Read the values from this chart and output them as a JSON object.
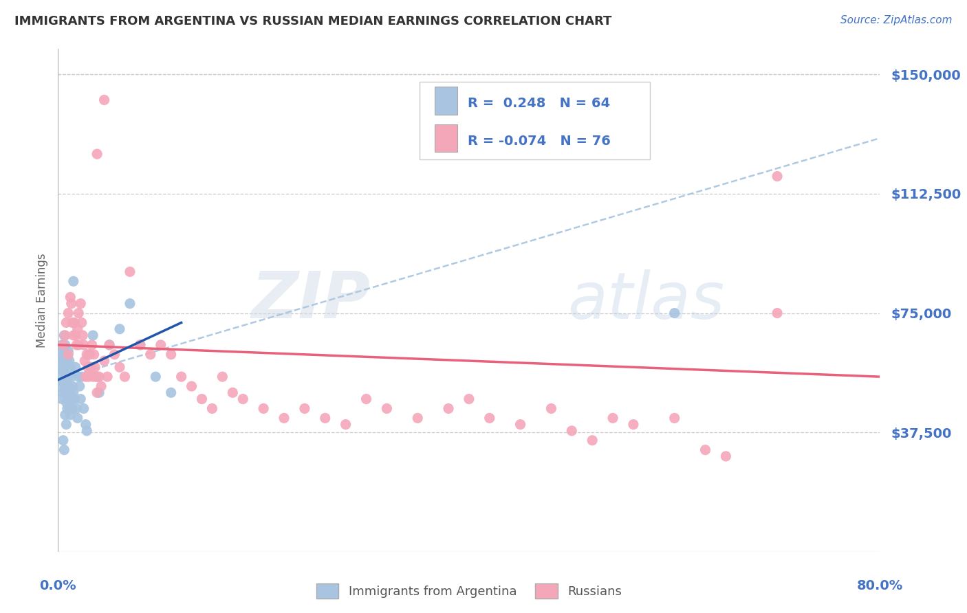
{
  "title": "IMMIGRANTS FROM ARGENTINA VS RUSSIAN MEDIAN EARNINGS CORRELATION CHART",
  "source": "Source: ZipAtlas.com",
  "ylabel": "Median Earnings",
  "xlim": [
    0.0,
    0.8
  ],
  "ylim": [
    0,
    158000
  ],
  "argentina_color": "#a8c4e0",
  "russia_color": "#f4a7b9",
  "argentina_solid_line_color": "#2255aa",
  "russia_line_color": "#e8607a",
  "argentina_dash_line_color": "#a8c4e0",
  "legend_label_argentina": "Immigrants from Argentina",
  "legend_label_russia": "Russians",
  "background_color": "#ffffff",
  "grid_color": "#cccccc",
  "title_color": "#333333",
  "source_color": "#4472c4",
  "axis_label_color": "#4472c4",
  "legend_text_color": "#4472c4",
  "watermark": "ZIPatlas",
  "argentina_points": [
    [
      0.001,
      58000
    ],
    [
      0.002,
      62000
    ],
    [
      0.002,
      55000
    ],
    [
      0.003,
      60000
    ],
    [
      0.003,
      52000
    ],
    [
      0.004,
      65000
    ],
    [
      0.004,
      48000
    ],
    [
      0.005,
      63000
    ],
    [
      0.005,
      57000
    ],
    [
      0.005,
      50000
    ],
    [
      0.006,
      68000
    ],
    [
      0.006,
      60000
    ],
    [
      0.006,
      53000
    ],
    [
      0.007,
      65000
    ],
    [
      0.007,
      58000
    ],
    [
      0.007,
      50000
    ],
    [
      0.007,
      43000
    ],
    [
      0.008,
      62000
    ],
    [
      0.008,
      55000
    ],
    [
      0.008,
      47000
    ],
    [
      0.008,
      40000
    ],
    [
      0.009,
      60000
    ],
    [
      0.009,
      52000
    ],
    [
      0.009,
      45000
    ],
    [
      0.01,
      63000
    ],
    [
      0.01,
      55000
    ],
    [
      0.01,
      48000
    ],
    [
      0.011,
      60000
    ],
    [
      0.011,
      52000
    ],
    [
      0.011,
      45000
    ],
    [
      0.012,
      58000
    ],
    [
      0.012,
      50000
    ],
    [
      0.012,
      43000
    ],
    [
      0.013,
      55000
    ],
    [
      0.013,
      48000
    ],
    [
      0.014,
      52000
    ],
    [
      0.014,
      45000
    ],
    [
      0.015,
      85000
    ],
    [
      0.015,
      50000
    ],
    [
      0.016,
      48000
    ],
    [
      0.017,
      58000
    ],
    [
      0.018,
      45000
    ],
    [
      0.019,
      42000
    ],
    [
      0.02,
      55000
    ],
    [
      0.021,
      52000
    ],
    [
      0.022,
      48000
    ],
    [
      0.023,
      55000
    ],
    [
      0.025,
      45000
    ],
    [
      0.027,
      40000
    ],
    [
      0.028,
      38000
    ],
    [
      0.03,
      62000
    ],
    [
      0.032,
      58000
    ],
    [
      0.034,
      68000
    ],
    [
      0.038,
      55000
    ],
    [
      0.04,
      50000
    ],
    [
      0.05,
      65000
    ],
    [
      0.06,
      70000
    ],
    [
      0.07,
      78000
    ],
    [
      0.08,
      65000
    ],
    [
      0.095,
      55000
    ],
    [
      0.11,
      50000
    ],
    [
      0.6,
      75000
    ],
    [
      0.005,
      35000
    ],
    [
      0.006,
      32000
    ]
  ],
  "russia_points": [
    [
      0.005,
      65000
    ],
    [
      0.007,
      68000
    ],
    [
      0.008,
      72000
    ],
    [
      0.01,
      75000
    ],
    [
      0.01,
      62000
    ],
    [
      0.012,
      80000
    ],
    [
      0.013,
      78000
    ],
    [
      0.014,
      72000
    ],
    [
      0.015,
      68000
    ],
    [
      0.016,
      72000
    ],
    [
      0.017,
      68000
    ],
    [
      0.018,
      65000
    ],
    [
      0.019,
      70000
    ],
    [
      0.02,
      75000
    ],
    [
      0.02,
      65000
    ],
    [
      0.022,
      78000
    ],
    [
      0.023,
      72000
    ],
    [
      0.024,
      68000
    ],
    [
      0.025,
      65000
    ],
    [
      0.026,
      60000
    ],
    [
      0.027,
      55000
    ],
    [
      0.028,
      62000
    ],
    [
      0.029,
      58000
    ],
    [
      0.03,
      55000
    ],
    [
      0.031,
      62000
    ],
    [
      0.032,
      58000
    ],
    [
      0.033,
      65000
    ],
    [
      0.034,
      55000
    ],
    [
      0.035,
      62000
    ],
    [
      0.036,
      58000
    ],
    [
      0.037,
      55000
    ],
    [
      0.038,
      50000
    ],
    [
      0.04,
      55000
    ],
    [
      0.042,
      52000
    ],
    [
      0.045,
      60000
    ],
    [
      0.048,
      55000
    ],
    [
      0.05,
      65000
    ],
    [
      0.055,
      62000
    ],
    [
      0.06,
      58000
    ],
    [
      0.065,
      55000
    ],
    [
      0.07,
      88000
    ],
    [
      0.08,
      65000
    ],
    [
      0.09,
      62000
    ],
    [
      0.1,
      65000
    ],
    [
      0.11,
      62000
    ],
    [
      0.12,
      55000
    ],
    [
      0.13,
      52000
    ],
    [
      0.14,
      48000
    ],
    [
      0.15,
      45000
    ],
    [
      0.16,
      55000
    ],
    [
      0.17,
      50000
    ],
    [
      0.18,
      48000
    ],
    [
      0.2,
      45000
    ],
    [
      0.22,
      42000
    ],
    [
      0.24,
      45000
    ],
    [
      0.26,
      42000
    ],
    [
      0.28,
      40000
    ],
    [
      0.3,
      48000
    ],
    [
      0.32,
      45000
    ],
    [
      0.35,
      42000
    ],
    [
      0.38,
      45000
    ],
    [
      0.4,
      48000
    ],
    [
      0.42,
      42000
    ],
    [
      0.45,
      40000
    ],
    [
      0.48,
      45000
    ],
    [
      0.5,
      38000
    ],
    [
      0.52,
      35000
    ],
    [
      0.54,
      42000
    ],
    [
      0.56,
      40000
    ],
    [
      0.6,
      42000
    ],
    [
      0.63,
      32000
    ],
    [
      0.65,
      30000
    ],
    [
      0.7,
      75000
    ],
    [
      0.038,
      125000
    ],
    [
      0.045,
      142000
    ],
    [
      0.7,
      118000
    ]
  ]
}
